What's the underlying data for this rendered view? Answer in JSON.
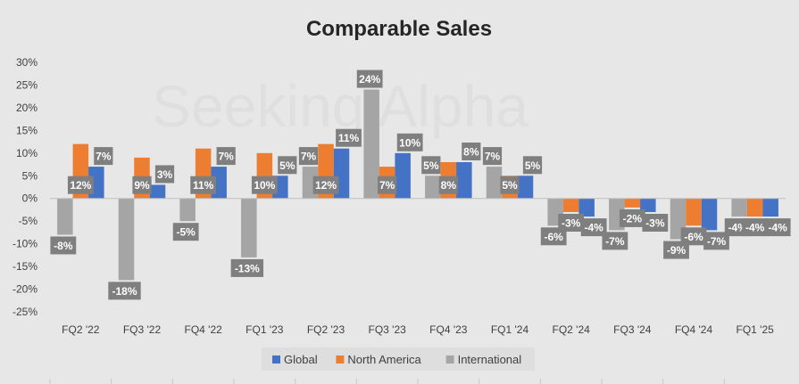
{
  "chart_data": {
    "type": "bar",
    "title": "Comparable Sales",
    "categories": [
      "FQ2 '22",
      "FQ3 '22",
      "FQ4 '22",
      "FQ1 '23",
      "FQ2 '23",
      "FQ3 '23",
      "FQ4 '23",
      "FQ1 '24",
      "FQ2 '24",
      "FQ3 '24",
      "FQ4 '24",
      "FQ1 '25"
    ],
    "series": [
      {
        "name": "Global",
        "color": "#4472c4",
        "values": [
          7,
          3,
          7,
          5,
          11,
          10,
          8,
          5,
          -4,
          -3,
          -7,
          -4
        ]
      },
      {
        "name": "North America",
        "color": "#ed7d31",
        "values": [
          12,
          9,
          11,
          10,
          12,
          7,
          8,
          5,
          -3,
          -2,
          -6,
          -4
        ]
      },
      {
        "name": "International",
        "color": "#a5a5a5",
        "values": [
          -8,
          -18,
          -5,
          -13,
          7,
          24,
          5,
          7,
          -6,
          -7,
          -9,
          -4
        ]
      }
    ],
    "yticks": [
      "30%",
      "25%",
      "20%",
      "15%",
      "10%",
      "5%",
      "0%",
      "-5%",
      "-10%",
      "-15%",
      "-20%",
      "-25%"
    ],
    "ylim": [
      -25,
      30
    ],
    "ystep": 5,
    "value_suffix": "%",
    "legend_position": "bottom",
    "gridlines": false,
    "watermark": "Seeking Alpha",
    "label_box_color": "#7f7f7f"
  }
}
